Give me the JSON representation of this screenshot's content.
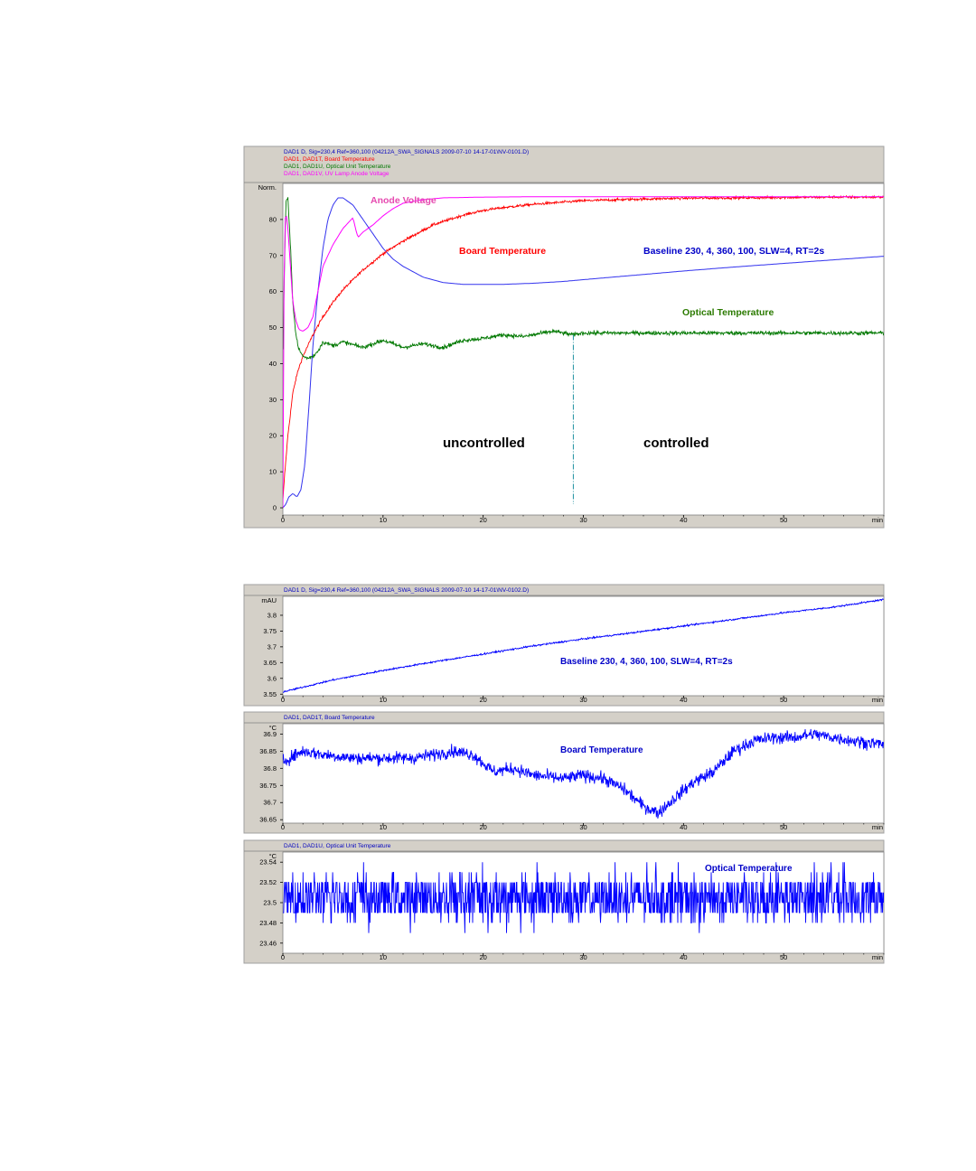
{
  "colors": {
    "panel_bg": "#d4d0c8",
    "plot_bg": "#ffffff",
    "signal_blue": "#0000ff",
    "board_red": "#ff0000",
    "optical_green": "#007800",
    "anode_magenta": "#ff00ff",
    "header_blue": "#0000c0",
    "annotation_anode": "#e64ab0",
    "annotation_red": "#ff0000",
    "annotation_blue": "#0000c8",
    "annotation_green": "#2b7a00",
    "divider_teal": "#1e90a0"
  },
  "chart_data": [
    {
      "type": "line",
      "header_lines": [
        {
          "text": "DAD1 D, Sig=230,4 Ref=360,100 (04212A_SWA_SIGNALS 2009-07-10 14-17-01\\NV-0101.D)",
          "color": "#0000c0"
        },
        {
          "text": "DAD1, DAD1T, Board Temperature",
          "color": "#ff0000"
        },
        {
          "text": "DAD1, DAD1U, Optical Unit Temperature",
          "color": "#007800"
        },
        {
          "text": "DAD1, DAD1V, UV Lamp Anode Voltage",
          "color": "#ff00ff"
        }
      ],
      "ylabel": "Norm.",
      "xunit": "min",
      "xlim": [
        0,
        60
      ],
      "ylim": [
        -2,
        90
      ],
      "xticks": [
        0,
        10,
        20,
        30,
        40,
        50
      ],
      "yticks": [
        0,
        10,
        20,
        30,
        40,
        50,
        60,
        70,
        80
      ],
      "series": [
        {
          "name": "Baseline 230, 4, 360, 100, SLW=4, RT=2s",
          "color": "#3333ee",
          "noise": 0,
          "x": [
            0,
            0.3,
            0.6,
            1.0,
            1.4,
            1.8,
            2.2,
            2.6,
            3.0,
            3.5,
            4.0,
            4.5,
            5.0,
            5.5,
            6.0,
            6.5,
            7.0,
            8.0,
            9.0,
            10.0,
            11.0,
            12.0,
            14.0,
            16.0,
            18.0,
            20.0,
            22.0,
            25.0,
            28.0,
            30.0,
            35.0,
            40.0,
            45.0,
            50.0,
            55.0,
            60.0
          ],
          "y": [
            0,
            1,
            3,
            4,
            3,
            5,
            12,
            28,
            45,
            60,
            72,
            80,
            84,
            86,
            86,
            85,
            84,
            80,
            76,
            72,
            69,
            67,
            64,
            62.5,
            62,
            62,
            62,
            62.3,
            62.8,
            63.3,
            64.5,
            65.7,
            66.8,
            67.8,
            68.8,
            69.8
          ]
        },
        {
          "name": "Board Temperature",
          "color": "#ff0000",
          "noise": 0.35,
          "x": [
            0,
            0.2,
            0.5,
            1.0,
            1.5,
            2.0,
            2.5,
            3.0,
            4.0,
            5.0,
            6.0,
            8.0,
            10.0,
            12.0,
            15.0,
            18.0,
            20.0,
            22.0,
            25.0,
            28.0,
            30.0,
            35.0,
            40.0,
            45.0,
            50.0,
            55.0,
            60.0
          ],
          "y": [
            2,
            10,
            20,
            32,
            38,
            42,
            45,
            48,
            53,
            57,
            60.5,
            66,
            70.5,
            74,
            78.5,
            81.2,
            82.5,
            83.3,
            84.2,
            84.8,
            85.2,
            85.6,
            85.9,
            86.0,
            86.1,
            86.2,
            86.2
          ]
        },
        {
          "name": "Optical Temperature",
          "color": "#007800",
          "noise": 0.55,
          "x": [
            0,
            0.3,
            0.5,
            0.8,
            1.0,
            1.3,
            1.6,
            2.0,
            2.5,
            3.0,
            3.5,
            4.0,
            5.0,
            6.0,
            8.0,
            10.0,
            12.0,
            14.0,
            16.0,
            18.0,
            20.0,
            22.0,
            24.0,
            26.0,
            27.0,
            28.0,
            29.0,
            30.0,
            35.0,
            40.0,
            45.0,
            50.0,
            55.0,
            60.0
          ],
          "y": [
            44,
            85,
            86,
            70,
            57,
            48,
            44,
            42,
            41.5,
            42,
            43.5,
            46,
            45,
            46,
            44.5,
            46.5,
            44.5,
            45.5,
            44.5,
            46.5,
            47,
            48,
            47.5,
            48.5,
            49,
            48.5,
            48,
            48.5,
            48.5,
            48.5,
            48.5,
            48.5,
            48.5,
            48.5
          ]
        },
        {
          "name": "Anode Voltage",
          "color": "#ff00ff",
          "noise": 0,
          "x": [
            0,
            0.15,
            0.3,
            0.5,
            0.8,
            1.0,
            1.3,
            1.6,
            2.0,
            2.5,
            3.0,
            3.5,
            4.0,
            5.0,
            6.0,
            7.0,
            7.3,
            7.5,
            8.0,
            9.0,
            10.0,
            11.0,
            12.0,
            14.0,
            16.0,
            20.0,
            25.0,
            30.0,
            40.0,
            50.0,
            60.0
          ],
          "y": [
            0,
            78,
            82,
            78,
            65,
            57,
            52,
            49.5,
            49,
            50,
            53,
            60,
            67,
            73,
            77.5,
            80.5,
            77,
            75,
            76.5,
            78.5,
            81,
            83,
            84.5,
            85.5,
            86,
            86.2,
            86.3,
            86.3,
            86.3,
            86.3,
            86.3
          ]
        }
      ],
      "annotations": [
        {
          "text": "Anode Voltage",
          "color": "#e64ab0",
          "size": 10.5
        },
        {
          "text": "Board Temperature",
          "color": "#ff0000",
          "size": 10.5
        },
        {
          "text": "Baseline  230, 4, 360, 100, SLW=4, RT=2s",
          "color": "#0000c8",
          "size": 10.5
        },
        {
          "text": "Optical Temperature",
          "color": "#2b7a00",
          "size": 10.5
        },
        {
          "text": "uncontrolled",
          "color": "#000000",
          "size": 15
        },
        {
          "text": "controlled",
          "color": "#000000",
          "size": 15
        }
      ],
      "divider": {
        "x": 29,
        "y_from": 1,
        "y_to": 48
      }
    },
    {
      "type": "line",
      "header_lines": [
        {
          "text": "DAD1 D, Sig=230,4 Ref=360,100 (04212A_SWA_SIGNALS 2009-07-10 14-17-01\\NV-0102.D)",
          "color": "#0000c0"
        }
      ],
      "ylabel": "mAU",
      "xunit": "min",
      "xlim": [
        0,
        60
      ],
      "ylim": [
        3.545,
        3.86
      ],
      "xticks": [
        0,
        10,
        20,
        30,
        40,
        50
      ],
      "yticks": [
        3.55,
        3.6,
        3.65,
        3.7,
        3.75,
        3.8
      ],
      "yticklabels": [
        "3.55",
        "3.6",
        "3.65",
        "3.7",
        "3.75",
        "3.8"
      ],
      "series": [
        {
          "name": "Baseline 230, 4, 360, 100, SLW=4, RT=2s",
          "color": "#0000ff",
          "noise": 0.0025,
          "x": [
            0,
            5,
            10,
            15,
            20,
            25,
            30,
            35,
            40,
            45,
            50,
            55,
            60
          ],
          "y": [
            3.557,
            3.595,
            3.625,
            3.652,
            3.677,
            3.703,
            3.725,
            3.745,
            3.766,
            3.787,
            3.808,
            3.826,
            3.85
          ]
        }
      ],
      "annotations": [
        {
          "text": "Baseline  230, 4, 360, 100, SLW=4, RT=2s",
          "color": "#0000c8",
          "size": 10
        }
      ]
    },
    {
      "type": "line",
      "header_lines": [
        {
          "text": "DAD1, DAD1T, Board Temperature",
          "color": "#0000c0"
        }
      ],
      "ylabel": "°C",
      "xunit": "min",
      "xlim": [
        0,
        60
      ],
      "ylim": [
        36.64,
        36.93
      ],
      "xticks": [
        0,
        10,
        20,
        30,
        40,
        50
      ],
      "yticks": [
        36.65,
        36.7,
        36.75,
        36.8,
        36.85,
        36.9
      ],
      "yticklabels": [
        "36.65",
        "36.7",
        "36.75",
        "36.8",
        "36.85",
        "36.9"
      ],
      "series": [
        {
          "name": "Board Temperature",
          "color": "#0000ff",
          "noise": 0.018,
          "x": [
            0,
            2,
            4,
            7,
            10,
            13,
            15,
            17,
            19,
            21,
            23,
            25,
            28,
            30,
            32,
            34,
            36,
            37.5,
            39,
            41,
            43,
            45,
            47,
            49,
            51,
            53,
            55,
            57,
            60
          ],
          "y": [
            36.82,
            36.85,
            36.84,
            36.83,
            36.83,
            36.83,
            36.84,
            36.85,
            36.84,
            36.79,
            36.8,
            36.78,
            36.77,
            36.78,
            36.77,
            36.74,
            36.69,
            36.67,
            36.71,
            36.76,
            36.79,
            36.85,
            36.88,
            36.89,
            36.89,
            36.9,
            36.89,
            36.88,
            36.87
          ]
        }
      ],
      "annotations": [
        {
          "text": "Board Temperature",
          "color": "#0000c8",
          "size": 10
        }
      ]
    },
    {
      "type": "line",
      "header_lines": [
        {
          "text": "DAD1, DAD1U, Optical Unit Temperature",
          "color": "#0000c0"
        }
      ],
      "ylabel": "°C",
      "xunit": "min",
      "xlim": [
        0,
        60
      ],
      "ylim": [
        23.45,
        23.55
      ],
      "xticks": [
        0,
        10,
        20,
        30,
        40,
        50
      ],
      "yticks": [
        23.46,
        23.48,
        23.5,
        23.52,
        23.54
      ],
      "yticklabels": [
        "23.46",
        "23.48",
        "23.5",
        "23.52",
        "23.54"
      ],
      "series": [
        {
          "name": "Optical Temperature",
          "color": "#0000ff",
          "noise": 0,
          "quantized": true,
          "levels": [
            23.49,
            23.5,
            23.51,
            23.52
          ],
          "spike_levels": [
            23.48,
            23.53
          ],
          "rare_levels": [
            23.47,
            23.54
          ],
          "x": [
            0,
            60
          ],
          "y": [
            23.5,
            23.5
          ]
        }
      ],
      "annotations": [
        {
          "text": "Optical Temperature",
          "color": "#0000c8",
          "size": 10
        }
      ]
    }
  ]
}
